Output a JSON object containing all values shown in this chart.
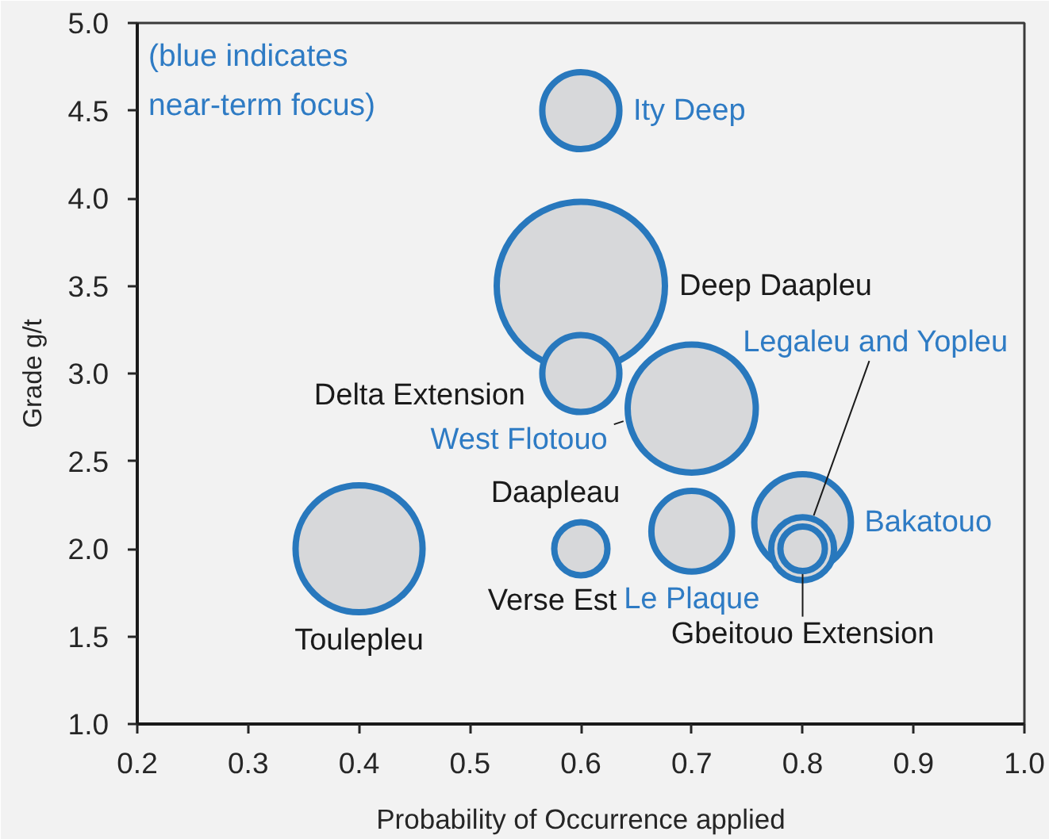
{
  "chart_data": {
    "type": "bubble",
    "xlabel": "Probability of Occurrence applied",
    "ylabel": "Grade g/t",
    "annotations": [
      "(blue indicates\nnear-term focus)",
      {
        "text": "Verse Est",
        "x": 0.6,
        "y": 2.0
      }
    ],
    "xlim": [
      0.2,
      1.0
    ],
    "xticks": [
      0.2,
      0.3,
      0.4,
      0.5,
      0.6,
      0.7,
      0.8,
      0.9,
      {
        "value": 1.0,
        "label": "1.0"
      }
    ],
    "ylim": [
      1.0,
      5.0
    ],
    "yticks": [
      {
        "value": 1.0,
        "label": "1.0"
      },
      1.5,
      {
        "value": 2.0,
        "label": "2.0"
      },
      2.5,
      {
        "value": 3.0,
        "label": "3.0"
      },
      3.5,
      {
        "value": 4.0,
        "label": "4.0"
      },
      4.5,
      {
        "value": 5.0,
        "label": "5.0"
      }
    ],
    "series": [
      {
        "color": "#2878bd",
        "x": [
          0.6,
          0.4,
          0.6,
          0.6,
          0.8
        ],
        "values": [
          3.5,
          2.0,
          3.0,
          2.0,
          2.0
        ],
        "sizes": [
          1.0,
          0.57,
          0.21,
          0.1,
          0.07
        ],
        "value_labels": [
          "Deep Daapleu",
          "Toulepleu",
          "Delta Extension",
          "Daapleau",
          "Gbeitouo Extension"
        ]
      },
      {
        "color": "#2878bd",
        "x": [
          0.6,
          0.7,
          0.7,
          0.8,
          0.8
        ],
        "values": [
          4.5,
          2.8,
          2.1,
          2.15,
          2.0
        ],
        "sizes": [
          0.21,
          0.58,
          0.23,
          0.33,
          0.14
        ],
        "value_labels": [
          "Ity Deep",
          "West Flotouo",
          "Le Plaque",
          "Bakatouo",
          "Legaleu and Yopleu"
        ]
      }
    ]
  }
}
